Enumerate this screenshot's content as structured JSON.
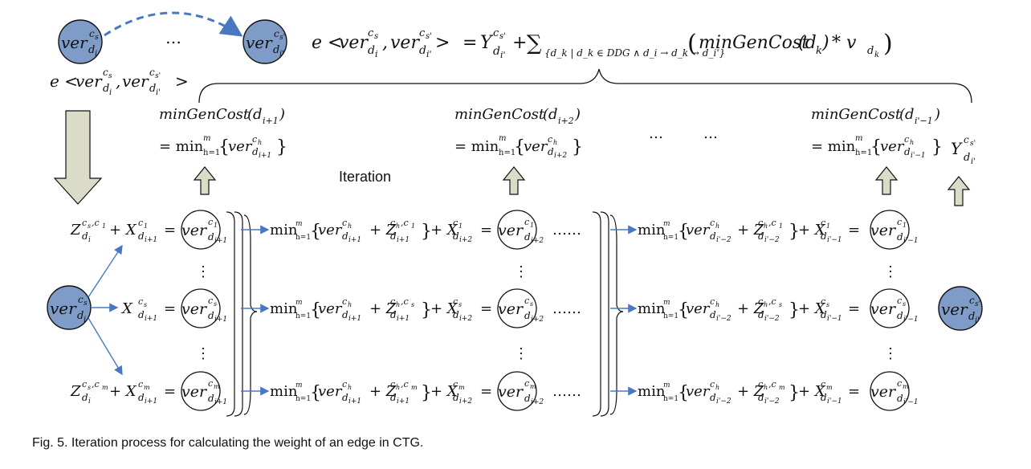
{
  "caption": "Fig. 5. Iteration process for calculating the weight of an edge in CTG.",
  "iteration_label": "Iteration",
  "ellipsis": "…",
  "dots": "……",
  "vdots": "⋮",
  "colors": {
    "filled_node": "#7f9cc8",
    "dashed_arrow": "#4a78c0",
    "flow_arrow": "#4a78c0",
    "big_arrow": "#dadcc8",
    "stroke": "#111111"
  },
  "top": {
    "node_left": {
      "base": "ver",
      "sub": "d",
      "subsub": "i",
      "sup": "c",
      "supsub": "s"
    },
    "node_right": {
      "base": "ver",
      "sub": "d",
      "subsub": "i'",
      "sup": "c",
      "supsub": "s'"
    },
    "edge_label": {
      "e": "e <",
      "v1": "ver",
      "sub1": "d",
      "subsub1": "i",
      "sup1": "c",
      "supsub1": "s",
      "comma": ",",
      "v2": "ver",
      "sub2": "d",
      "subsub2": "i'",
      "sup2": "c",
      "supsub2": "s'",
      "close": ">"
    },
    "formula": {
      "eq": "=",
      "Y": "Y",
      "Ysub": "d",
      "Ysubsub": "i'",
      "Ysup": "c",
      "Ysupsub": "s'",
      "plus": "+",
      "sigma": "∑",
      "sigma_sub": "{d_k | d_k ∈ DDG ∧ d_i → d_k → d_i'}",
      "lparen": "(",
      "fn": "minGenCost",
      "arg": "(d",
      "argsub": "k",
      "argclose": ")",
      "times": "* v",
      "vsub": "d",
      "vsubsub": "k",
      "rparen": ")"
    }
  },
  "cost_blocks": [
    {
      "label": "minGenCost",
      "arg": "(d",
      "argsub": "i+1",
      "argclose": ")",
      "eq": "= min",
      "h": "h=1",
      "m": "m",
      "ver": "ver",
      "vsub": "d",
      "vsubsub": "i+1",
      "vsup": "c",
      "vsupsub": "h"
    },
    {
      "label": "minGenCost",
      "arg": "(d",
      "argsub": "i+2",
      "argclose": ")",
      "eq": "= min",
      "h": "h=1",
      "m": "m",
      "ver": "ver",
      "vsub": "d",
      "vsubsub": "i+2",
      "vsup": "c",
      "vsupsub": "h"
    },
    {
      "label": "minGenCost",
      "arg": "(d",
      "argsub": "i'−1",
      "argclose": ")",
      "eq": "= min",
      "h": "h=1",
      "m": "m",
      "ver": "ver",
      "vsub": "d",
      "vsubsub": "i'−1",
      "vsup": "c",
      "vsupsub": "h"
    }
  ],
  "mid_ellipsis": [
    "…",
    "…"
  ],
  "y_right": {
    "Y": "Y",
    "sub": "d",
    "subsub": "i'",
    "sup": "c",
    "supsub": "s'"
  },
  "start_node": {
    "base": "ver",
    "sub": "d",
    "subsub": "i",
    "sup": "c",
    "supsub": "s"
  },
  "end_node": {
    "base": "ver",
    "sub": "d",
    "subsub": "i'",
    "sup": "c",
    "supsub": "s'"
  },
  "rows": [
    {
      "lhs": {
        "Z": "Z",
        "Zsub": "d",
        "Zsubsub": "i",
        "Zsup": "c",
        "Zsupsub": "s",
        "Zsup2": ",c",
        "Zsup2sub": "1",
        "plus": "+ X",
        "Xsub": "d",
        "Xsubsub": "i+1",
        "Xsup": "c",
        "Xsupsub": "1",
        "eq": "="
      },
      "n1": {
        "sub": "d",
        "subsub": "i+1",
        "sup": "c",
        "supsub": "1"
      },
      "mid": {
        "min": "min",
        "h": "h=1",
        "m": "m",
        "ver": "ver",
        "vsub": "d",
        "vsubsub": "i+1",
        "vsup": "c",
        "vsupsub": "h",
        "plus": "+ Z",
        "Zsub": "d",
        "Zsubsub": "i+1",
        "Zsup": "c",
        "Zsupsub": "h",
        "Zsup2": ",c",
        "Zsup2sub": "1",
        "plusX": "+ X",
        "Xsub": "d",
        "Xsubsub": "i+2",
        "Xsup": "c",
        "Xsupsub": "1",
        "eq": "="
      },
      "n2": {
        "sub": "d",
        "subsub": "i+2",
        "sup": "c",
        "supsub": "1"
      },
      "right": {
        "min": "min",
        "h": "h=1",
        "m": "m",
        "ver": "ver",
        "vsub": "d",
        "vsubsub": "i'−2",
        "vsup": "c",
        "vsupsub": "h",
        "plus": "+ Z",
        "Zsub": "d",
        "Zsubsub": "i'−2",
        "Zsup": "c",
        "Zsupsub": "h",
        "Zsup2": ",c",
        "Zsup2sub": "1",
        "plusX": "+ X",
        "Xsub": "d",
        "Xsubsub": "i'−1",
        "Xsup": "c",
        "Xsupsub": "1",
        "eq": "="
      },
      "n3": {
        "sub": "d",
        "subsub": "i'−1",
        "sup": "c",
        "supsub": "1"
      }
    },
    {
      "lhs": {
        "plus": "X",
        "Xsub": "d",
        "Xsubsub": "i+1",
        "Xsup": "c",
        "Xsupsub": "s",
        "eq": "="
      },
      "n1": {
        "sub": "d",
        "subsub": "i+1",
        "sup": "c",
        "supsub": "s"
      },
      "mid": {
        "min": "min",
        "h": "h=1",
        "m": "m",
        "ver": "ver",
        "vsub": "d",
        "vsubsub": "i+1",
        "vsup": "c",
        "vsupsub": "h",
        "plus": "+ Z",
        "Zsub": "d",
        "Zsubsub": "i+1",
        "Zsup": "c",
        "Zsupsub": "h",
        "Zsup2": ",c",
        "Zsup2sub": "s",
        "plusX": "+ X",
        "Xsub": "d",
        "Xsubsub": "i+2",
        "Xsup": "c",
        "Xsupsub": "s",
        "eq": "="
      },
      "n2": {
        "sub": "d",
        "subsub": "i+2",
        "sup": "c",
        "supsub": "s"
      },
      "right": {
        "min": "min",
        "h": "h=1",
        "m": "m",
        "ver": "ver",
        "vsub": "d",
        "vsubsub": "i'−2",
        "vsup": "c",
        "vsupsub": "h",
        "plus": "+ Z",
        "Zsub": "d",
        "Zsubsub": "i'−2",
        "Zsup": "c",
        "Zsupsub": "h",
        "Zsup2": ",c",
        "Zsup2sub": "s",
        "plusX": "+ X",
        "Xsub": "d",
        "Xsubsub": "i'−1",
        "Xsup": "c",
        "Xsupsub": "s",
        "eq": "="
      },
      "n3": {
        "sub": "d",
        "subsub": "i'−1",
        "sup": "c",
        "supsub": "s"
      }
    },
    {
      "lhs": {
        "Z": "Z",
        "Zsub": "d",
        "Zsubsub": "i",
        "Zsup": "c",
        "Zsupsub": "s",
        "Zsup2": ",c",
        "Zsup2sub": "m",
        "plus": "+ X",
        "Xsub": "d",
        "Xsubsub": "i+1",
        "Xsup": "c",
        "Xsupsub": "m",
        "eq": "="
      },
      "n1": {
        "sub": "d",
        "subsub": "i+1",
        "sup": "c",
        "supsub": "m"
      },
      "mid": {
        "min": "min",
        "h": "h=1",
        "m": "m",
        "ver": "ver",
        "vsub": "d",
        "vsubsub": "i+1",
        "vsup": "c",
        "vsupsub": "h",
        "plus": "+ Z",
        "Zsub": "d",
        "Zsubsub": "i+1",
        "Zsup": "c",
        "Zsupsub": "h",
        "Zsup2": ",c",
        "Zsup2sub": "m",
        "plusX": "+ X",
        "Xsub": "d",
        "Xsubsub": "i+2",
        "Xsup": "c",
        "Xsupsub": "m",
        "eq": "="
      },
      "n2": {
        "sub": "d",
        "subsub": "i+2",
        "sup": "c",
        "supsub": "m"
      },
      "right": {
        "min": "min",
        "h": "h=1",
        "m": "m",
        "ver": "ver",
        "vsub": "d",
        "vsubsub": "i'−2",
        "vsup": "c",
        "vsupsub": "h",
        "plus": "+ Z",
        "Zsub": "d",
        "Zsubsub": "i'−2",
        "Zsup": "c",
        "Zsupsub": "h",
        "Zsup2": ",c",
        "Zsup2sub": "m",
        "plusX": "+ X",
        "Xsub": "d",
        "Xsubsub": "i'−1",
        "Xsup": "c",
        "Xsupsub": "m",
        "eq": "="
      },
      "n3": {
        "sub": "d",
        "subsub": "i'−1",
        "sup": "c",
        "supsub": "m"
      }
    }
  ]
}
